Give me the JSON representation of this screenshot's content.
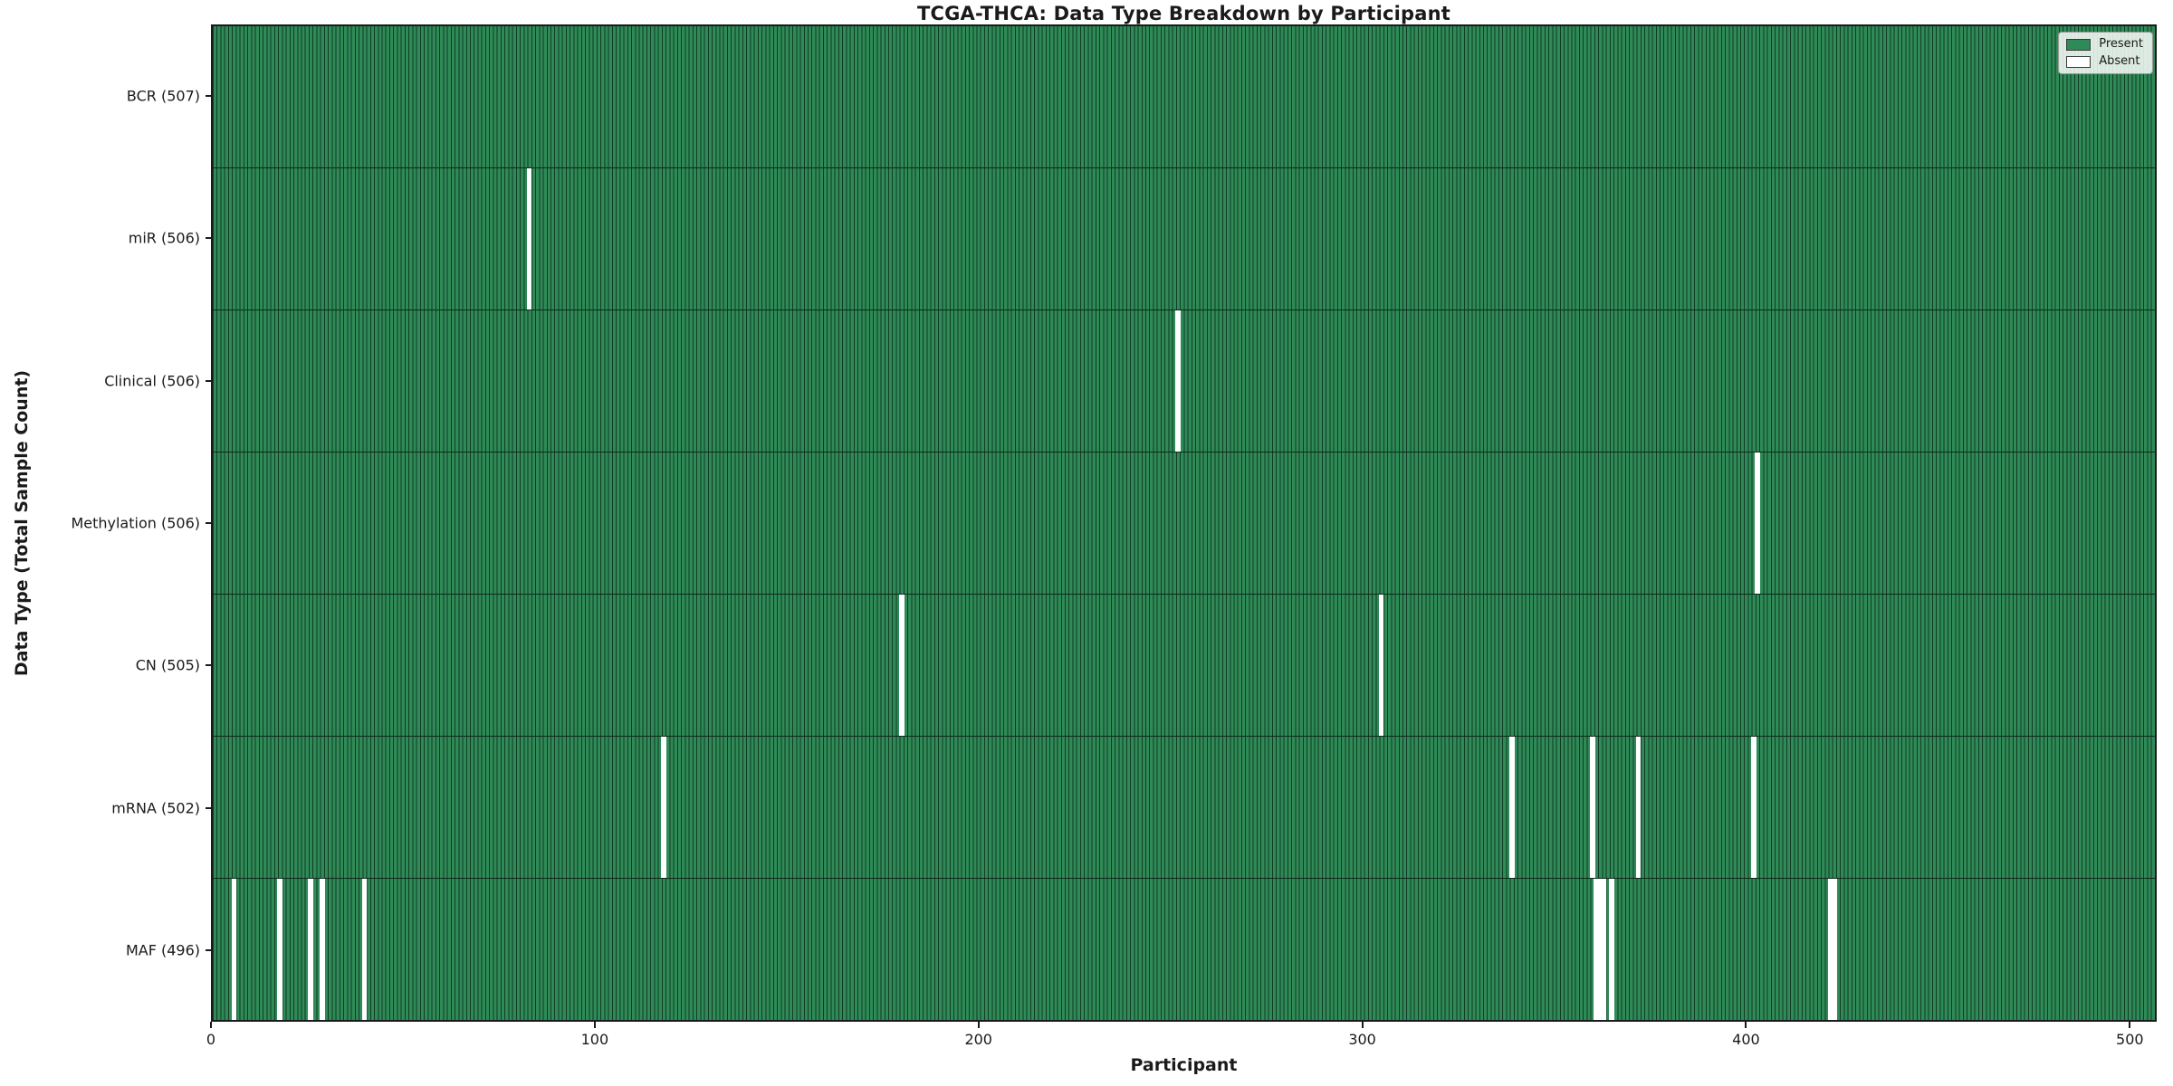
{
  "chart_data": {
    "type": "heatmap",
    "title": "TCGA-THCA: Data Type Breakdown by Participant",
    "xlabel": "Participant",
    "ylabel": "Data Type (Total Sample Count)",
    "n_participants": 507,
    "xlim": [
      0,
      507
    ],
    "x_ticks": [
      0,
      100,
      200,
      300,
      400,
      500
    ],
    "grid": false,
    "legend_position": "upper right",
    "legend": [
      {
        "label": "Present",
        "color": "#2e8b57"
      },
      {
        "label": "Absent",
        "color": "#ffffff"
      }
    ],
    "colors": {
      "present_fill": "#2e8b57",
      "bar_edge": "#143a26",
      "absent_fill": "#ffffff",
      "row_separator": "#10281a",
      "axis_text": "#1a1a1a"
    },
    "rows": [
      {
        "label": "BCR (507)",
        "data_type": "BCR",
        "total_samples": 507,
        "absent_participants": []
      },
      {
        "label": "miR (506)",
        "data_type": "miR",
        "total_samples": 506,
        "absent_participants": [
          82
        ]
      },
      {
        "label": "Clinical (506)",
        "data_type": "Clinical",
        "total_samples": 506,
        "absent_participants": [
          251
        ]
      },
      {
        "label": "Methylation (506)",
        "data_type": "Methylation",
        "total_samples": 506,
        "absent_participants": [
          402
        ]
      },
      {
        "label": "CN (505)",
        "data_type": "CN",
        "total_samples": 505,
        "absent_participants": [
          179,
          304
        ]
      },
      {
        "label": "mRNA (502)",
        "data_type": "mRNA",
        "total_samples": 502,
        "absent_participants": [
          117,
          338,
          359,
          371,
          401
        ]
      },
      {
        "label": "MAF (496)",
        "data_type": "MAF",
        "total_samples": 496,
        "absent_participants": [
          5,
          17,
          25,
          28,
          39,
          360,
          361,
          362,
          364,
          421,
          422
        ]
      }
    ]
  }
}
